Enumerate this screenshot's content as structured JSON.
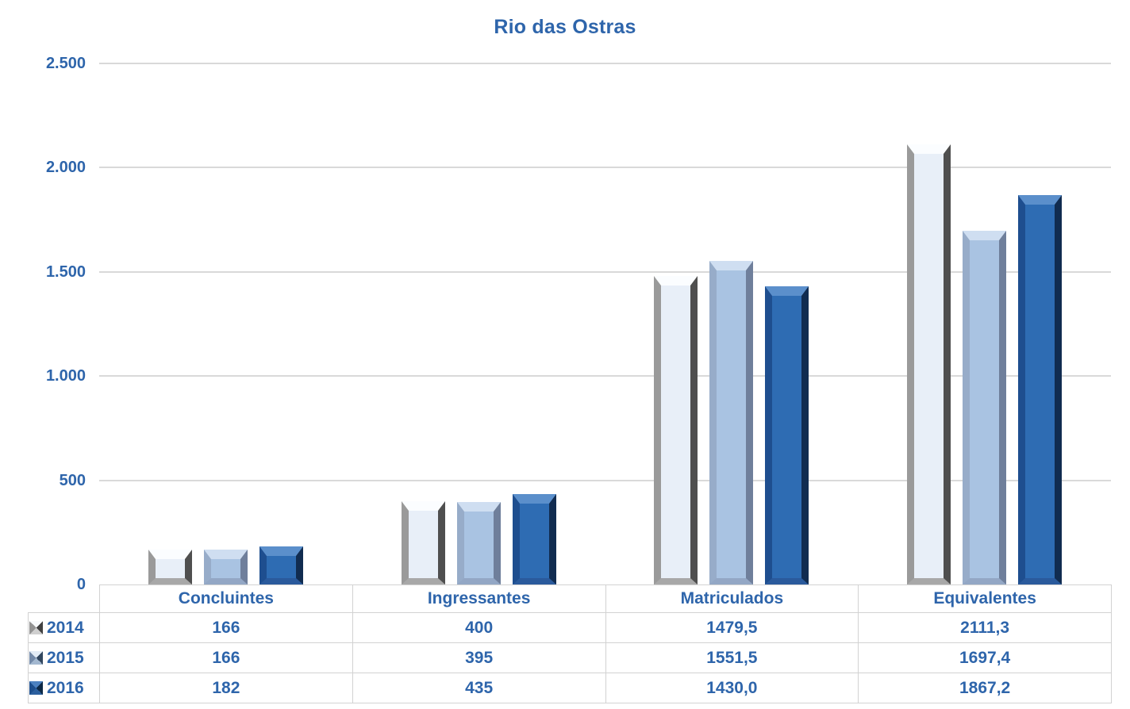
{
  "title": "Rio das Ostras",
  "colors": {
    "text_blue": "#2E65AB",
    "gridline": "#D9D9D9",
    "table_border": "#D2D2D2",
    "background": "#FFFFFF",
    "series": [
      {
        "name": "2014",
        "face": "#E8EFF8",
        "bevel_top": "#FBFDFF",
        "bevel_left": "#9A9A9A",
        "bevel_right": "#4F4F4F",
        "bevel_bottom": "#A8A8A8",
        "legend_facets": {
          "top": "#F8FAFC",
          "right": "#424242",
          "bottom": "#CFCFCF",
          "left": "#939393"
        }
      },
      {
        "name": "2015",
        "face": "#A9C3E2",
        "bevel_top": "#CFDEF1",
        "bevel_left": "#97ACC9",
        "bevel_right": "#6F7F9B",
        "bevel_bottom": "#93A7C5",
        "legend_facets": {
          "top": "#E3ECF6",
          "right": "#32475F",
          "bottom": "#A3B8D0",
          "left": "#7389A8"
        }
      },
      {
        "name": "2016",
        "face": "#2E6CB3",
        "bevel_top": "#5B8FCB",
        "bevel_left": "#1E4E8F",
        "bevel_right": "#112C50",
        "bevel_bottom": "#2A5A9C",
        "legend_facets": {
          "top": "#4C81C0",
          "right": "#0D2946",
          "bottom": "#2B5F9E",
          "left": "#1D4E8C"
        }
      }
    ]
  },
  "chart_data": {
    "type": "bar",
    "title": "Rio das Ostras",
    "categories": [
      "Concluintes",
      "Ingressantes",
      "Matriculados",
      "Equivalentes"
    ],
    "series": [
      {
        "name": "2014",
        "values": [
          166,
          400,
          1479.5,
          2111.3
        ],
        "labels": [
          "166",
          "400",
          "1479,5",
          "2111,3"
        ]
      },
      {
        "name": "2015",
        "values": [
          166,
          395,
          1551.5,
          1697.4
        ],
        "labels": [
          "166",
          "395",
          "1551,5",
          "1697,4"
        ]
      },
      {
        "name": "2016",
        "values": [
          182,
          435,
          1430.0,
          1867.2
        ],
        "labels": [
          "182",
          "435",
          "1430,0",
          "1867,2"
        ]
      }
    ],
    "xlabel": "",
    "ylabel": "",
    "ylim": [
      0,
      2500
    ],
    "yticks": [
      {
        "value": 0,
        "label": "0"
      },
      {
        "value": 500,
        "label": "500"
      },
      {
        "value": 1000,
        "label": "1.000"
      },
      {
        "value": 1500,
        "label": "1.500"
      },
      {
        "value": 2000,
        "label": "2.000"
      },
      {
        "value": 2500,
        "label": "2.500"
      }
    ],
    "grid": true,
    "legend_position": "table-left"
  }
}
